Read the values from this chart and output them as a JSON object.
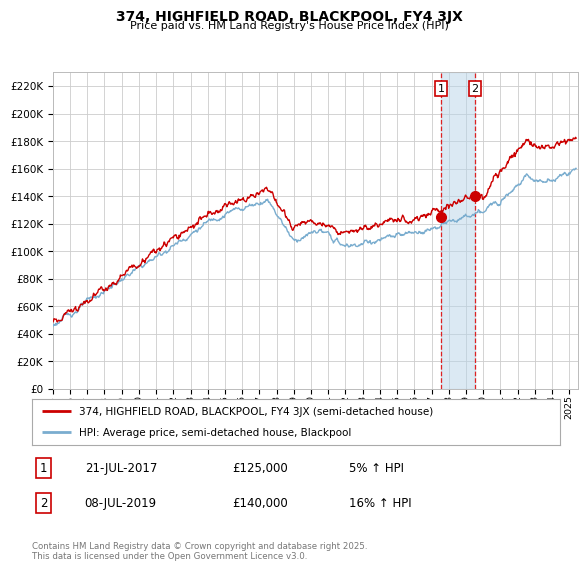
{
  "title": "374, HIGHFIELD ROAD, BLACKPOOL, FY4 3JX",
  "subtitle": "Price paid vs. HM Land Registry's House Price Index (HPI)",
  "legend_line1": "374, HIGHFIELD ROAD, BLACKPOOL, FY4 3JX (semi-detached house)",
  "legend_line2": "HPI: Average price, semi-detached house, Blackpool",
  "transaction1": {
    "label": "1",
    "date": "21-JUL-2017",
    "price": 125000,
    "change": "5% ↑ HPI"
  },
  "transaction2": {
    "label": "2",
    "date": "08-JUL-2019",
    "price": 140000,
    "change": "16% ↑ HPI"
  },
  "red_line_color": "#cc0000",
  "blue_line_color": "#7aadcf",
  "background_color": "#ffffff",
  "grid_color": "#cccccc",
  "vline1_x": 2017.54,
  "vline2_x": 2019.52,
  "marker1_x": 2017.54,
  "marker1_y": 125000,
  "marker2_x": 2019.52,
  "marker2_y": 140000,
  "ylim": [
    0,
    230000
  ],
  "xlim": [
    1995,
    2025.5
  ],
  "footer": "Contains HM Land Registry data © Crown copyright and database right 2025.\nThis data is licensed under the Open Government Licence v3.0.",
  "fig_width": 6.0,
  "fig_height": 5.6
}
